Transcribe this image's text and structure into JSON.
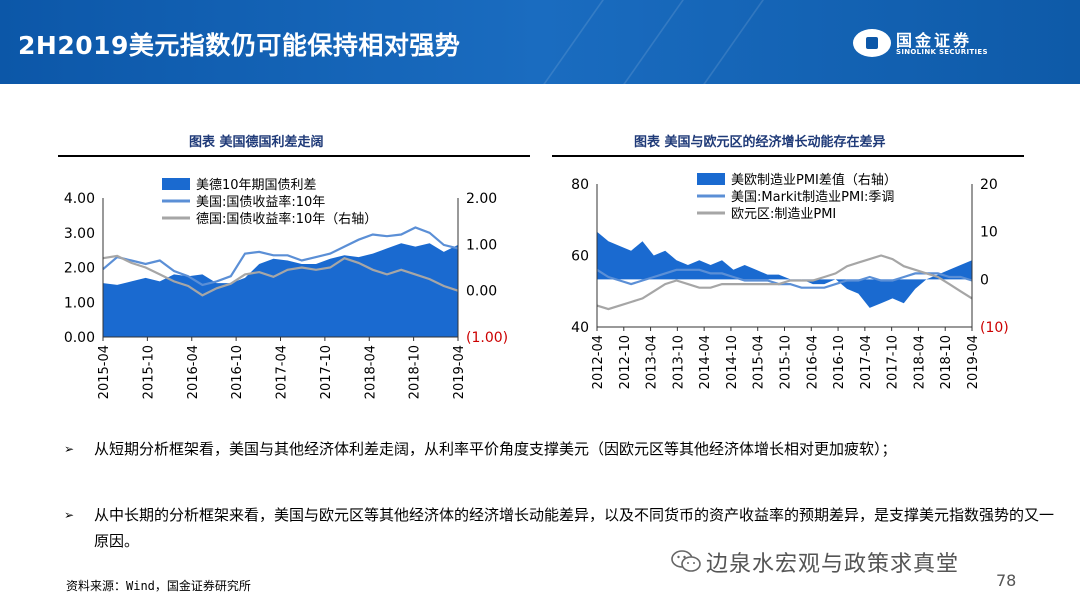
{
  "header": {
    "title": "2H2019美元指数仍可能保持相对强势",
    "logo_cn": "国金证券",
    "logo_en": "SINOLINK SECURITIES"
  },
  "colors": {
    "header_blue": "#0c57a8",
    "series_blue": "#1a6ad0",
    "line_blue": "#5b8fd6",
    "line_grey": "#a6a6a6",
    "negative_red": "#cc0000"
  },
  "charts": {
    "left_title": "图表  美国德国利差走阔",
    "right_title": "图表 美国与欧元区的经济增长动能存在差异"
  },
  "chart_data": [
    {
      "type": "area",
      "title": "图表  美国德国利差走阔",
      "x_ticks": [
        "2015-04",
        "2015-10",
        "2016-04",
        "2016-10",
        "2017-04",
        "2017-10",
        "2018-04",
        "2018-10",
        "2019-04"
      ],
      "y_left_ticks": [
        "4.00",
        "3.00",
        "2.00",
        "1.00",
        "0.00"
      ],
      "y_right_ticks": [
        "2.00",
        "1.00",
        "0.00",
        "(1.00)"
      ],
      "ylim_left": [
        0,
        4
      ],
      "ylim_right": [
        -1,
        2
      ],
      "legend": [
        "美德10年期国债利差",
        "美国:国债收益率:10年",
        "德国:国债收益率:10年（右轴）"
      ],
      "legend_position": "top-left",
      "series": [
        {
          "name": "美德10年期国债利差",
          "kind": "area",
          "axis": "left",
          "values": [
            1.55,
            1.5,
            1.6,
            1.7,
            1.6,
            1.8,
            1.75,
            1.8,
            1.55,
            1.55,
            1.7,
            2.1,
            2.25,
            2.2,
            2.1,
            2.1,
            2.25,
            2.35,
            2.3,
            2.4,
            2.55,
            2.7,
            2.6,
            2.7,
            2.45,
            2.65
          ]
        },
        {
          "name": "美国:国债收益率:10年",
          "kind": "line",
          "axis": "left",
          "values": [
            1.95,
            2.3,
            2.2,
            2.1,
            2.2,
            1.9,
            1.75,
            1.5,
            1.6,
            1.75,
            2.4,
            2.45,
            2.35,
            2.35,
            2.2,
            2.3,
            2.4,
            2.6,
            2.8,
            2.95,
            2.9,
            2.95,
            3.15,
            3.0,
            2.65,
            2.55
          ]
        },
        {
          "name": "德国:国债收益率:10年（右轴）",
          "kind": "line",
          "axis": "right",
          "values": [
            0.7,
            0.75,
            0.6,
            0.5,
            0.35,
            0.2,
            0.1,
            -0.1,
            0.05,
            0.15,
            0.35,
            0.4,
            0.3,
            0.45,
            0.5,
            0.45,
            0.5,
            0.7,
            0.6,
            0.45,
            0.35,
            0.45,
            0.35,
            0.25,
            0.1,
            0.0
          ]
        }
      ]
    },
    {
      "type": "area",
      "title": "图表 美国与欧元区的经济增长动能存在差异",
      "x_ticks": [
        "2012-04",
        "2012-10",
        "2013-04",
        "2013-10",
        "2014-04",
        "2014-10",
        "2015-04",
        "2015-10",
        "2016-04",
        "2016-10",
        "2017-04",
        "2017-10",
        "2018-04",
        "2018-10",
        "2019-04"
      ],
      "y_left_ticks": [
        "80",
        "60",
        "40"
      ],
      "y_right_ticks": [
        "20",
        "10",
        "0",
        "(10)"
      ],
      "ylim_left": [
        40,
        80
      ],
      "ylim_right": [
        -10,
        20
      ],
      "legend": [
        "美欧制造业PMI差值（右轴）",
        "美国:Markit制造业PMI:季调",
        "欧元区:制造业PMI"
      ],
      "legend_position": "top-center",
      "series": [
        {
          "name": "美欧制造业PMI差值（右轴）",
          "kind": "area",
          "axis": "right",
          "values": [
            10,
            8,
            7,
            6,
            8,
            5,
            6,
            4,
            3,
            4,
            3,
            4,
            2,
            3,
            2,
            1,
            1,
            0,
            0,
            -1,
            -1,
            0,
            -2,
            -3,
            -6,
            -5,
            -4,
            -5,
            -2,
            0,
            1,
            2,
            3,
            4
          ]
        },
        {
          "name": "美国:Markit制造业PMI:季调",
          "kind": "line",
          "axis": "left",
          "values": [
            56,
            54,
            53,
            52,
            53,
            54,
            55,
            56,
            56,
            56,
            55,
            55,
            54,
            53,
            53,
            53,
            52,
            52,
            51,
            51,
            51,
            52,
            53,
            53,
            54,
            53,
            53,
            54,
            55,
            55,
            55,
            54,
            54,
            53
          ]
        },
        {
          "name": "欧元区:制造业PMI",
          "kind": "line",
          "axis": "left",
          "values": [
            46,
            45,
            46,
            47,
            48,
            50,
            52,
            53,
            52,
            51,
            51,
            52,
            52,
            52,
            52,
            52,
            52,
            53,
            53,
            53,
            54,
            55,
            57,
            58,
            59,
            60,
            59,
            57,
            56,
            55,
            54,
            52,
            50,
            48
          ]
        }
      ]
    }
  ],
  "bullets": [
    {
      "arrow": "➢",
      "text": "从短期分析框架看，美国与其他经济体利差走阔，从利率平价角度支撑美元（因欧元区等其他经济体增长相对更加疲软）；"
    },
    {
      "arrow": "➢",
      "text": "从中长期的分析框架来看，美国与欧元区等其他经济体的经济增长动能差异，以及不同货币的资产收益率的预期差异，是支撑美元指数强势的又一原因。"
    }
  ],
  "footer": {
    "source": "资料来源：Wind，国金证券研究所",
    "watermark": "边泉水宏观与政策求真堂",
    "page_number": "78"
  }
}
